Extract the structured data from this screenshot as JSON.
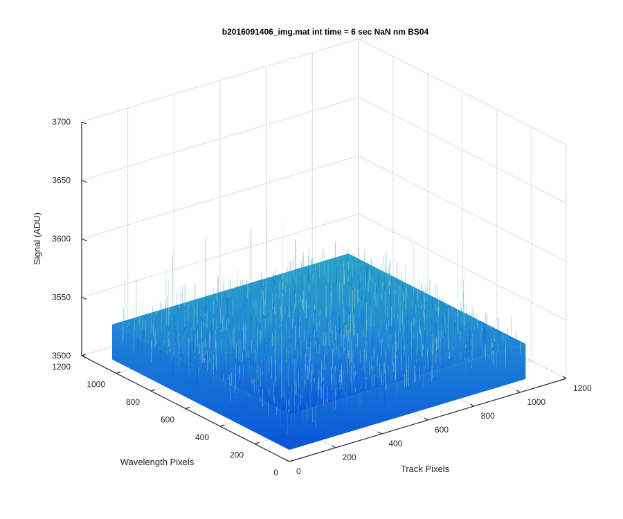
{
  "chart_data": {
    "type": "surface",
    "title": "b2016091406_img.mat int time = 6 sec  NaN nm BS04",
    "xlabel": "Track Pixels",
    "ylabel": "Wavelength Pixels",
    "zlabel": "Signal (ADU)",
    "xlim": [
      0,
      1200
    ],
    "ylim": [
      0,
      1200
    ],
    "zlim": [
      3500,
      3700
    ],
    "x_ticks": [
      "0",
      "200",
      "400",
      "600",
      "800",
      "1000",
      "1200"
    ],
    "y_ticks": [
      "0",
      "200",
      "400",
      "600",
      "800",
      "1000",
      "1200"
    ],
    "z_ticks": [
      "3500",
      "3550",
      "3600",
      "3650",
      "3700"
    ],
    "surface_extent": {
      "x": [
        0,
        1024
      ],
      "y": [
        0,
        1024
      ]
    },
    "signal_mean": 3540,
    "signal_range": [
      3510,
      3640
    ],
    "grid": true,
    "colormap": [
      "#0a55d8",
      "#1f86d6",
      "#2aa3c6",
      "#45b0b0"
    ]
  }
}
